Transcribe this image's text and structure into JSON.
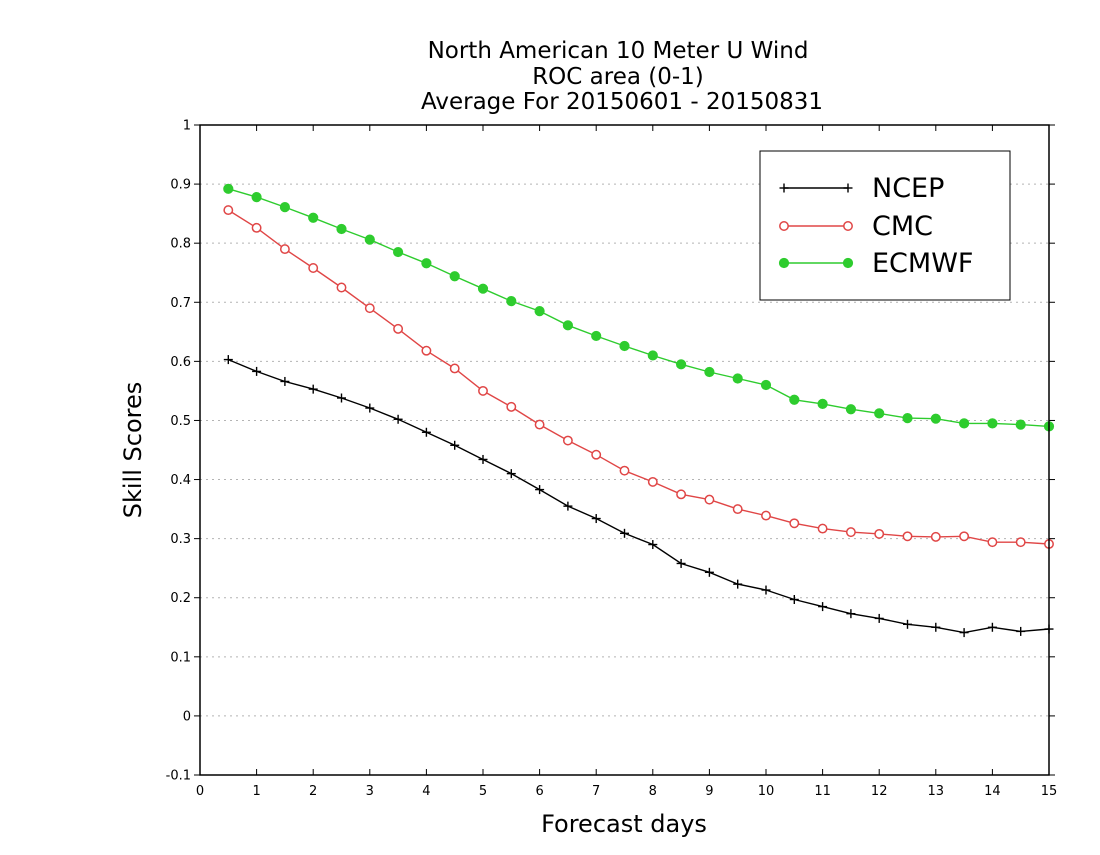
{
  "chart_data": {
    "type": "line",
    "title_lines": [
      "North American 10 Meter U Wind",
      "ROC area (0-1)",
      "Average For 20150601 - 20150831"
    ],
    "xlabel": "Forecast days",
    "ylabel": "Skill Scores",
    "xlim": [
      0,
      15
    ],
    "ylim": [
      -0.1,
      1
    ],
    "x_ticks": [
      0,
      1,
      2,
      3,
      4,
      5,
      6,
      7,
      8,
      9,
      10,
      11,
      12,
      13,
      14,
      15
    ],
    "y_ticks": [
      -0.1,
      0,
      0.1,
      0.2,
      0.3,
      0.4,
      0.5,
      0.6,
      0.7,
      0.8,
      0.9,
      1
    ],
    "y_tick_labels": [
      "-0.1",
      "0",
      "0.1",
      "0.2",
      "0.3",
      "0.4",
      "0.5",
      "0.6",
      "0.7",
      "0.8",
      "0.9",
      "1"
    ],
    "grid": "horizontal dotted",
    "legend_position": "top-right",
    "x": [
      0.5,
      1,
      1.5,
      2,
      2.5,
      3,
      3.5,
      4,
      4.5,
      5,
      5.5,
      6,
      6.5,
      7,
      7.5,
      8,
      8.5,
      9,
      9.5,
      10,
      10.5,
      11,
      11.5,
      12,
      12.5,
      13,
      13.5,
      14,
      14.5,
      15
    ],
    "series": [
      {
        "name": "NCEP",
        "color": "#000000",
        "marker": "plus",
        "values": [
          0.603,
          0.583,
          0.566,
          0.553,
          0.538,
          0.521,
          0.502,
          0.48,
          0.458,
          0.434,
          0.41,
          0.383,
          0.355,
          0.334,
          0.309,
          0.29,
          0.258,
          0.243,
          0.223,
          0.213,
          0.197,
          0.185,
          0.173,
          0.165,
          0.155,
          0.15,
          0.141,
          0.15,
          0.143,
          0.147
        ]
      },
      {
        "name": "CMC",
        "color": "#e04646",
        "marker": "open-circle",
        "values": [
          0.856,
          0.826,
          0.79,
          0.758,
          0.725,
          0.69,
          0.655,
          0.618,
          0.588,
          0.55,
          0.523,
          0.493,
          0.466,
          0.442,
          0.415,
          0.396,
          0.375,
          0.366,
          0.35,
          0.339,
          0.326,
          0.317,
          0.311,
          0.308,
          0.304,
          0.303,
          0.304,
          0.294,
          0.294,
          0.291
        ]
      },
      {
        "name": "ECMWF",
        "color": "#2ecc2e",
        "marker": "filled-circle",
        "values": [
          0.892,
          0.878,
          0.861,
          0.843,
          0.824,
          0.806,
          0.785,
          0.766,
          0.744,
          0.723,
          0.702,
          0.685,
          0.661,
          0.643,
          0.626,
          0.61,
          0.595,
          0.582,
          0.571,
          0.56,
          0.535,
          0.528,
          0.519,
          0.512,
          0.504,
          0.503,
          0.495,
          0.495,
          0.493,
          0.49
        ]
      }
    ]
  }
}
